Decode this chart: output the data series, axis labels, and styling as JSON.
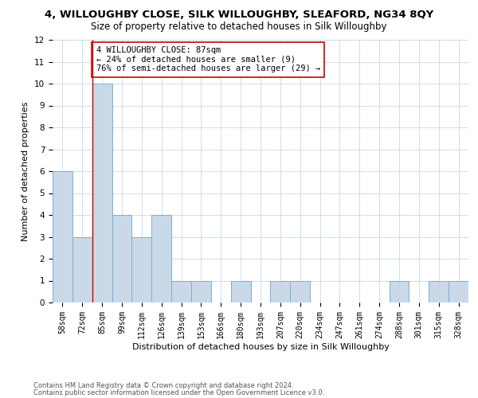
{
  "title_line1": "4, WILLOUGHBY CLOSE, SILK WILLOUGHBY, SLEAFORD, NG34 8QY",
  "title_line2": "Size of property relative to detached houses in Silk Willoughby",
  "xlabel": "Distribution of detached houses by size in Silk Willoughby",
  "ylabel": "Number of detached properties",
  "categories": [
    "58sqm",
    "72sqm",
    "85sqm",
    "99sqm",
    "112sqm",
    "126sqm",
    "139sqm",
    "153sqm",
    "166sqm",
    "180sqm",
    "193sqm",
    "207sqm",
    "220sqm",
    "234sqm",
    "247sqm",
    "261sqm",
    "274sqm",
    "288sqm",
    "301sqm",
    "315sqm",
    "328sqm"
  ],
  "values": [
    6,
    3,
    10,
    4,
    3,
    4,
    1,
    1,
    0,
    1,
    0,
    1,
    1,
    0,
    0,
    0,
    0,
    1,
    0,
    1,
    1
  ],
  "bar_color": "#c9d9e8",
  "bar_edge_color": "#7bafd4",
  "subject_bar_index": 2,
  "subject_line_color": "#cc0000",
  "annotation_text": "4 WILLOUGHBY CLOSE: 87sqm\n← 24% of detached houses are smaller (9)\n76% of semi-detached houses are larger (29) →",
  "annotation_box_color": "#ffffff",
  "annotation_box_edge": "#cc0000",
  "ylim": [
    0,
    12
  ],
  "yticks": [
    0,
    1,
    2,
    3,
    4,
    5,
    6,
    7,
    8,
    9,
    10,
    11,
    12
  ],
  "footnote1": "Contains HM Land Registry data © Crown copyright and database right 2024.",
  "footnote2": "Contains public sector information licensed under the Open Government Licence v3.0.",
  "bg_color": "#ffffff",
  "grid_color": "#c8d8e8",
  "title_fontsize": 9.5,
  "subtitle_fontsize": 8.5,
  "axis_label_fontsize": 8,
  "tick_fontsize": 7,
  "annotation_fontsize": 7.5,
  "footnote_fontsize": 6
}
